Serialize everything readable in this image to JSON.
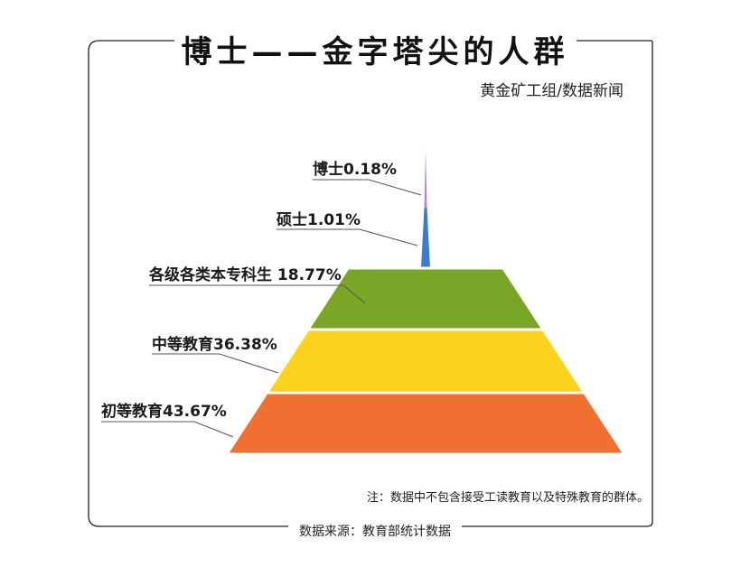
{
  "header": {
    "title": "博士——金字塔尖的人群",
    "credit": "黄金矿工组/数据新闻"
  },
  "footer": {
    "note": "注：数据中不包含接受工读教育以及特殊教育的群体。",
    "source": "数据来源：教育部统计数据"
  },
  "chart_data": {
    "type": "pyramid",
    "unit": "%",
    "levels": [
      {
        "name": "博士",
        "value": 0.18,
        "label": "博士0.18%",
        "color": "#b084d6"
      },
      {
        "name": "硕士",
        "value": 1.01,
        "label": "硕士1.01%",
        "color": "#3d7cc9"
      },
      {
        "name": "各级各类本专科生",
        "value": 18.77,
        "label": "各级各类本专科生 18.77%",
        "color": "#7aa627"
      },
      {
        "name": "中等教育",
        "value": 36.38,
        "label": "中等教育36.38%",
        "color": "#fcd21c"
      },
      {
        "name": "初等教育",
        "value": 43.67,
        "label": "初等教育43.67%",
        "color": "#ef7030"
      }
    ]
  }
}
